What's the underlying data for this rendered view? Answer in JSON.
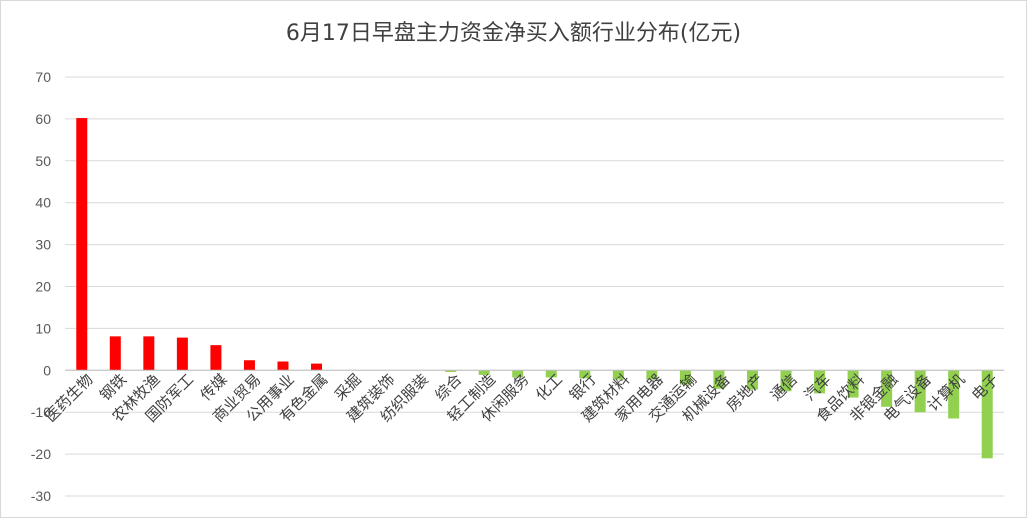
{
  "chart_data": {
    "type": "bar",
    "title": "6月17日早盘主力资金净买入额行业分布(亿元)",
    "xlabel": "",
    "ylabel": "",
    "ylim": [
      -30,
      70
    ],
    "yticks": [
      70,
      60,
      50,
      40,
      30,
      20,
      10,
      0,
      -10,
      -20,
      -30
    ],
    "grid": true,
    "legend": "none",
    "categories": [
      "医药生物",
      "钢铁",
      "农林牧渔",
      "国防军工",
      "传媒",
      "商业贸易",
      "公用事业",
      "有色金属",
      "采掘",
      "建筑装饰",
      "纺织服装",
      "综合",
      "轻工制造",
      "休闲服务",
      "化工",
      "银行",
      "建筑材料",
      "家用电器",
      "交通运输",
      "机械设备",
      "房地产",
      "通信",
      "汽车",
      "食品饮料",
      "非银金融",
      "电气设备",
      "计算机",
      "电子"
    ],
    "values": [
      60.2,
      8.1,
      8.1,
      7.8,
      6.0,
      2.4,
      2.1,
      1.6,
      0.0,
      0.0,
      0.0,
      -0.4,
      -1.1,
      -1.7,
      -1.7,
      -1.9,
      -2.2,
      -2.2,
      -3.4,
      -4.4,
      -4.6,
      -5.0,
      -5.5,
      -6.5,
      -8.7,
      -10.0,
      -11.5,
      -21.0
    ],
    "colors": {
      "positive": "#ff0000",
      "negative": "#92d050"
    }
  }
}
